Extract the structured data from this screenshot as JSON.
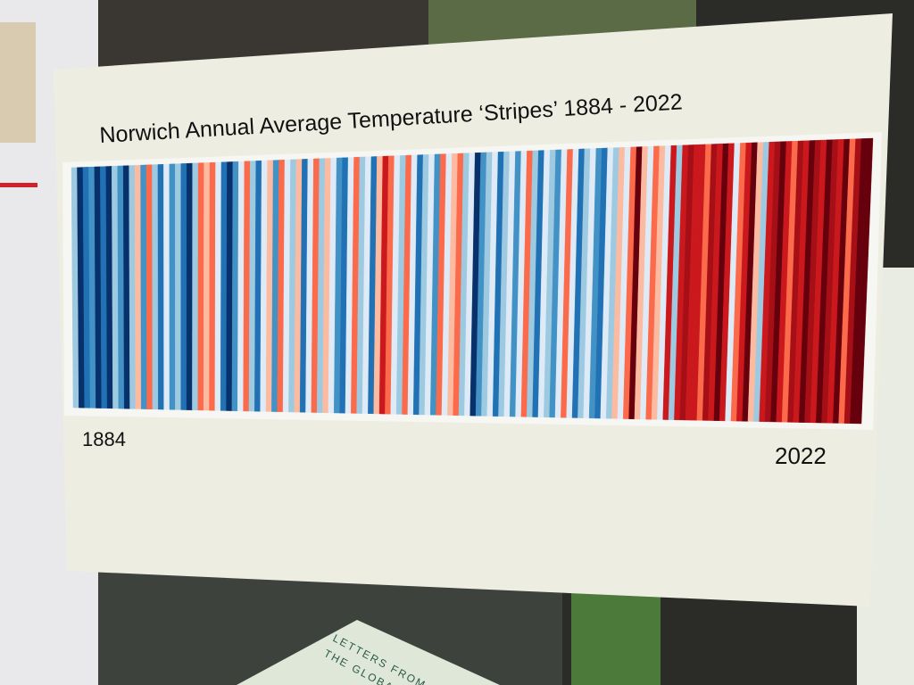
{
  "poster": {
    "title": "Norwich Annual Average Temperature ‘Stripes’ 1884 - 2022",
    "start_label": "1884",
    "end_label": "2022",
    "stripes": [
      "#9ecae1",
      "#08306b",
      "#2171b5",
      "#4292c6",
      "#08306b",
      "#2171b5",
      "#08306b",
      "#9ecae1",
      "#4292c6",
      "#08306b",
      "#9ecae1",
      "#fcbba1",
      "#4292c6",
      "#fb6a4a",
      "#9ecae1",
      "#2171b5",
      "#deebf7",
      "#4292c6",
      "#9ecae1",
      "#2171b5",
      "#08306b",
      "#9ecae1",
      "#fb6a4a",
      "#fcbba1",
      "#fb6a4a",
      "#deebf7",
      "#2171b5",
      "#08306b",
      "#4292c6",
      "#deebf7",
      "#fb6a4a",
      "#9ecae1",
      "#2171b5",
      "#deebf7",
      "#fcbba1",
      "#4292c6",
      "#fb6a4a",
      "#deebf7",
      "#9ecae1",
      "#fcbba1",
      "#2171b5",
      "#deebf7",
      "#fb6a4a",
      "#9ecae1",
      "#fcbba1",
      "#deebf7",
      "#4292c6",
      "#2171b5",
      "#deebf7",
      "#fb6a4a",
      "#9ecae1",
      "#deebf7",
      "#2171b5",
      "#fcbba1",
      "#cb181d",
      "#fb6a4a",
      "#deebf7",
      "#9ecae1",
      "#fb6a4a",
      "#deebf7",
      "#2171b5",
      "#9ecae1",
      "#deebf7",
      "#4292c6",
      "#fb6a4a",
      "#deebf7",
      "#fcbba1",
      "#fb6a4a",
      "#9ecae1",
      "#deebf7",
      "#08306b",
      "#4292c6",
      "#9ecae1",
      "#deebf7",
      "#2171b5",
      "#9ecae1",
      "#deebf7",
      "#4292c6",
      "#deebf7",
      "#fb6a4a",
      "#9ecae1",
      "#2171b5",
      "#deebf7",
      "#9ecae1",
      "#4292c6",
      "#deebf7",
      "#fb6a4a",
      "#deebf7",
      "#2171b5",
      "#9ecae1",
      "#deebf7",
      "#4292c6",
      "#2171b5",
      "#deebf7",
      "#9ecae1",
      "#fcbba1",
      "#deebf7",
      "#fb6a4a",
      "#67000d",
      "#fcbba1",
      "#deebf7",
      "#fb6a4a",
      "#fcbba1",
      "#deebf7",
      "#cb181d",
      "#9ecae1",
      "#cb181d",
      "#a50f15",
      "#cb181d",
      "#cb181d",
      "#fb6a4a",
      "#a50f15",
      "#cb181d",
      "#67000d",
      "#cb181d",
      "#deebf7",
      "#fb6a4a",
      "#cb181d",
      "#67000d",
      "#fcbba1",
      "#9ecae1",
      "#cb181d",
      "#a50f15",
      "#67000d",
      "#cb181d",
      "#fb6a4a",
      "#a50f15",
      "#cb181d",
      "#67000d",
      "#a50f15",
      "#cb181d",
      "#67000d",
      "#a50f15",
      "#cb181d",
      "#67000d",
      "#fb6a4a",
      "#a50f15",
      "#67000d",
      "#67000d"
    ]
  },
  "book": {
    "line1": "LETTERS FROM",
    "line2": "THE GLOBAL SOUT"
  }
}
